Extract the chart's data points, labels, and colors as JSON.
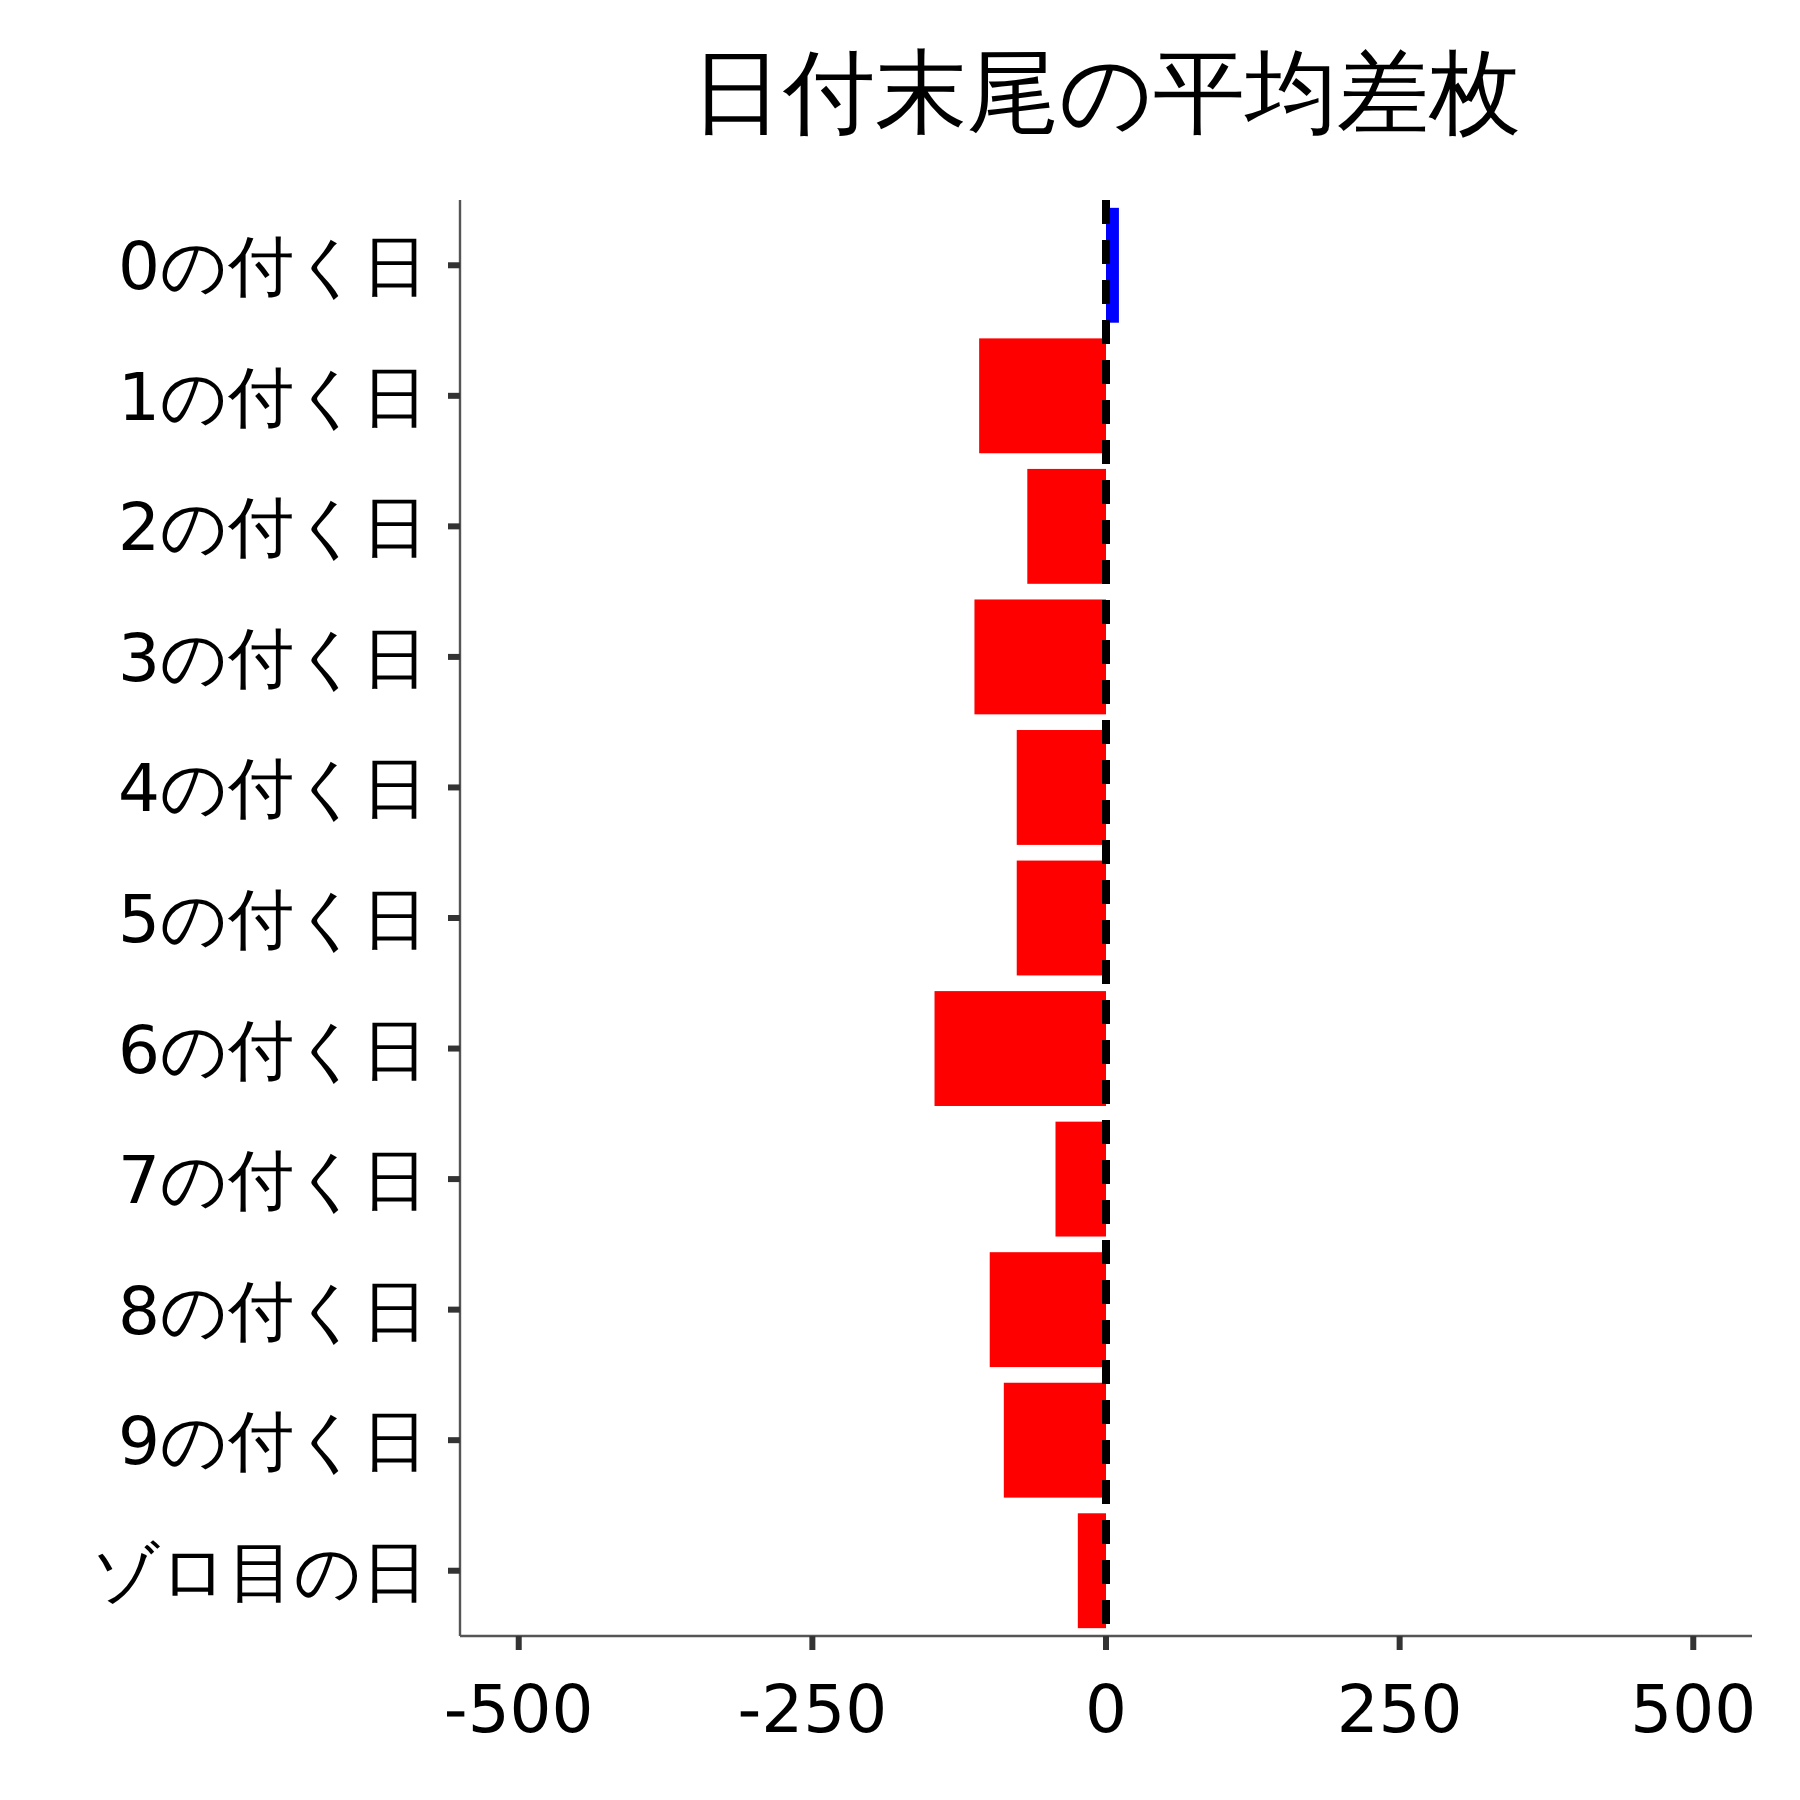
{
  "chart_data": {
    "type": "bar",
    "orientation": "horizontal",
    "title": "日付末尾の平均差枚",
    "categories": [
      "0の付く日",
      "1の付く日",
      "2の付く日",
      "3の付く日",
      "4の付く日",
      "5の付く日",
      "6の付く日",
      "7の付く日",
      "8の付く日",
      "9の付く日",
      "ゾロ目の日"
    ],
    "values": [
      11,
      -108,
      -67,
      -112,
      -76,
      -76,
      -146,
      -43,
      -99,
      -87,
      -24
    ],
    "colors": [
      "#0000ff",
      "#ff0000",
      "#ff0000",
      "#ff0000",
      "#ff0000",
      "#ff0000",
      "#ff0000",
      "#ff0000",
      "#ff0000",
      "#ff0000",
      "#ff0000"
    ],
    "xlim": [
      -550,
      550
    ],
    "xticks": [
      {
        "value": -500,
        "label": "-500"
      },
      {
        "value": -250,
        "label": "-250"
      },
      0,
      250,
      500
    ],
    "ref_lines": [
      {
        "axis": "x",
        "value": 0,
        "color": "#000000",
        "line_style": "dashed"
      }
    ],
    "grid": false
  }
}
